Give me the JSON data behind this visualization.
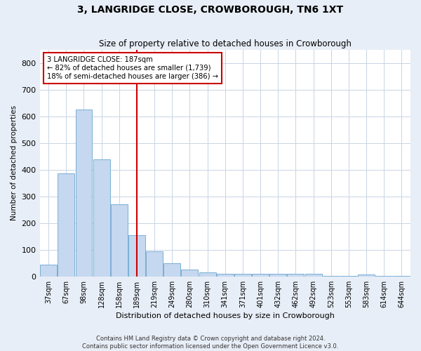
{
  "title": "3, LANGRIDGE CLOSE, CROWBOROUGH, TN6 1XT",
  "subtitle": "Size of property relative to detached houses in Crowborough",
  "xlabel": "Distribution of detached houses by size in Crowborough",
  "ylabel": "Number of detached properties",
  "categories": [
    "37sqm",
    "67sqm",
    "98sqm",
    "128sqm",
    "158sqm",
    "189sqm",
    "219sqm",
    "249sqm",
    "280sqm",
    "310sqm",
    "341sqm",
    "371sqm",
    "401sqm",
    "432sqm",
    "462sqm",
    "492sqm",
    "523sqm",
    "553sqm",
    "583sqm",
    "614sqm",
    "644sqm"
  ],
  "values": [
    45,
    385,
    625,
    440,
    270,
    155,
    95,
    50,
    25,
    14,
    10,
    10,
    10,
    10,
    10,
    9,
    1,
    1,
    8,
    1,
    1
  ],
  "bar_color": "#c5d8ef",
  "bar_edge_color": "#7aafd4",
  "vline_color": "#cc0000",
  "annotation_line1": "3 LANGRIDGE CLOSE: 187sqm",
  "annotation_line2": "← 82% of detached houses are smaller (1,739)",
  "annotation_line3": "18% of semi-detached houses are larger (386) →",
  "annotation_box_color": "#ffffff",
  "annotation_box_edge": "#cc0000",
  "ylim": [
    0,
    850
  ],
  "yticks": [
    0,
    100,
    200,
    300,
    400,
    500,
    600,
    700,
    800
  ],
  "footer1": "Contains HM Land Registry data © Crown copyright and database right 2024.",
  "footer2": "Contains public sector information licensed under the Open Government Licence v3.0.",
  "bg_color": "#e8eef7",
  "plot_bg_color": "#ffffff",
  "title_fontsize": 10,
  "subtitle_fontsize": 8.5
}
